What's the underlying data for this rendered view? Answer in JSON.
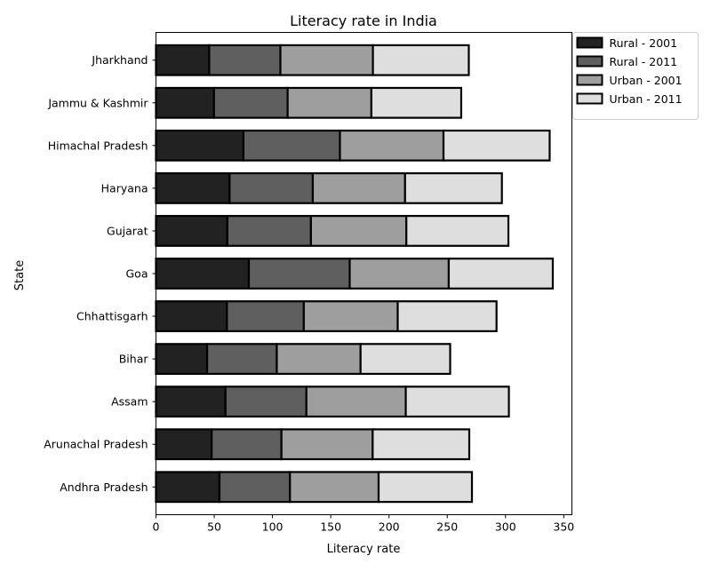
{
  "chart_data": {
    "type": "bar",
    "orientation": "horizontal",
    "stacked": true,
    "title": "Literacy rate in India",
    "xlabel": "Literacy rate",
    "ylabel": "State",
    "xlim": [
      0,
      357
    ],
    "xticks": [
      0,
      50,
      100,
      150,
      200,
      250,
      300,
      350
    ],
    "grid": false,
    "legend_position": "outside-top-right",
    "categories": [
      "Andhra Pradesh",
      "Arunachal Pradesh",
      "Assam",
      "Bihar",
      "Chhattisgarh",
      "Goa",
      "Gujarat",
      "Haryana",
      "Himachal Pradesh",
      "Jammu & Kashmir",
      "Jharkhand"
    ],
    "series": [
      {
        "name": "Rural - 2001",
        "color": "#222222",
        "values": [
          54.5,
          47.8,
          59.7,
          43.9,
          60.9,
          79.7,
          61.3,
          63.2,
          75.1,
          49.8,
          45.7
        ]
      },
      {
        "name": "Rural - 2011",
        "color": "#5f5f5f",
        "values": [
          60.5,
          59.9,
          69.4,
          59.8,
          66.0,
          86.6,
          71.7,
          71.4,
          82.8,
          63.2,
          61.1
        ]
      },
      {
        "name": "Urban - 2001",
        "color": "#9e9e9e",
        "values": [
          76.1,
          78.3,
          85.3,
          71.9,
          80.6,
          85.0,
          81.9,
          79.2,
          88.9,
          71.9,
          79.4
        ]
      },
      {
        "name": "Urban - 2011",
        "color": "#dedede",
        "values": [
          80.1,
          82.9,
          88.5,
          76.9,
          84.8,
          89.3,
          87.6,
          83.1,
          91.1,
          77.1,
          82.3
        ]
      }
    ]
  }
}
